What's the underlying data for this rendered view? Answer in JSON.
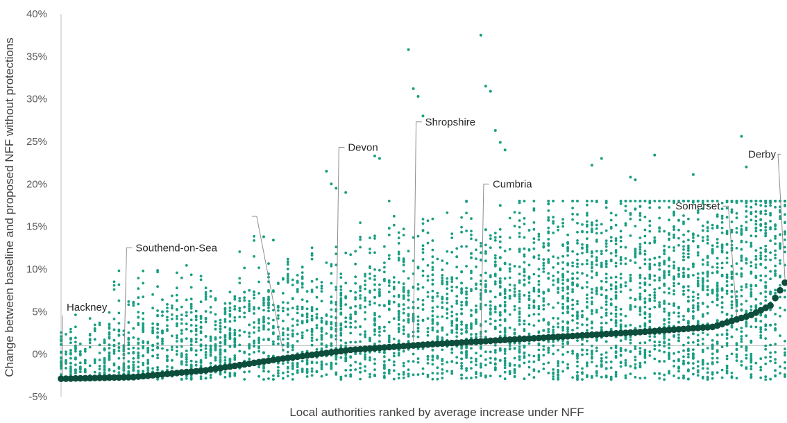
{
  "chart_data": {
    "type": "scatter",
    "xlabel": "Local authorities ranked by average increase under NFF",
    "ylabel": "Change between baseline and proposed NFF without protections",
    "ylim": [
      -5,
      40
    ],
    "yticks": [
      -5,
      0,
      5,
      10,
      15,
      20,
      25,
      30,
      35,
      40
    ],
    "ytick_format": "percent",
    "xlim": [
      0,
      150
    ],
    "reference_line_y": 1.0,
    "grid": false,
    "legend": "none",
    "colors": {
      "schools": "#1a9e82",
      "average": "#0d4d3c",
      "leader": "#8c8c8c",
      "reference": "#bfbfbf"
    },
    "series": [
      {
        "kind": "average",
        "x": [
          0,
          15,
          30,
          45,
          60,
          75,
          90,
          105,
          120,
          135,
          143,
          147,
          150
        ],
        "y": [
          -2.9,
          -2.7,
          -1.9,
          -0.6,
          0.5,
          1.1,
          1.6,
          2.1,
          2.6,
          3.2,
          4.6,
          5.7,
          8.4
        ]
      },
      {
        "kind": "schools",
        "x": [
          42,
          44,
          55,
          56,
          57,
          59,
          65,
          66,
          72,
          73,
          74,
          75,
          87,
          88,
          89,
          90,
          91,
          92,
          110,
          112,
          118,
          119,
          123,
          131,
          141,
          142,
          143,
          145,
          148,
          149
        ],
        "y": [
          13.8,
          13.4,
          21.5,
          20.0,
          19.5,
          19.0,
          23.3,
          23.0,
          35.8,
          31.2,
          30.3,
          28.0,
          37.5,
          31.5,
          30.9,
          26.3,
          24.9,
          24.0,
          22.2,
          23.0,
          20.8,
          20.5,
          23.4,
          21.1,
          25.6,
          22.0,
          16.5,
          15.8,
          14.7,
          16.9
        ]
      }
    ],
    "annotations": [
      {
        "label": "Hackney",
        "x": 0,
        "y": -2.9,
        "label_y": 5.5
      },
      {
        "label": "Southend-on-Sea",
        "x": 13,
        "y": -2.4,
        "label_y": 12.5
      },
      {
        "label": "",
        "x": 46,
        "y": -0.2,
        "label_y": 16.2
      },
      {
        "label": "Devon",
        "x": 57,
        "y": 0.4,
        "label_y": 24.3
      },
      {
        "label": "Shropshire",
        "x": 73,
        "y": 1.0,
        "label_y": 27.3
      },
      {
        "label": "Cumbria",
        "x": 87,
        "y": 1.4,
        "label_y": 20.0
      },
      {
        "label": "Somerset",
        "x": 140,
        "y": 4.0,
        "label_y": 17.4
      },
      {
        "label": "Derby",
        "x": 150,
        "y": 8.4,
        "label_y": 23.5
      }
    ]
  }
}
